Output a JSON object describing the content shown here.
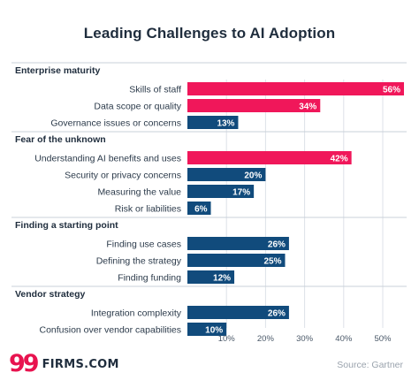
{
  "chart_data": {
    "type": "bar",
    "orientation": "horizontal",
    "title": "Leading Challenges to AI Adoption",
    "xlim": [
      0,
      50
    ],
    "x_ticks": [
      "10%",
      "20%",
      "30%",
      "40%",
      "50%"
    ],
    "grid": "vertical",
    "groups": [
      {
        "label": "Enterprise maturity",
        "items": [
          {
            "label": "Skills of staff",
            "value": 56,
            "value_label": "56%",
            "highlight": true
          },
          {
            "label": "Data scope or quality",
            "value": 34,
            "value_label": "34%",
            "highlight": true
          },
          {
            "label": "Governance issues or concerns",
            "value": 13,
            "value_label": "13%",
            "highlight": false
          }
        ]
      },
      {
        "label": "Fear of the unknown",
        "items": [
          {
            "label": "Understanding AI benefits and uses",
            "value": 42,
            "value_label": "42%",
            "highlight": true
          },
          {
            "label": "Security or privacy concerns",
            "value": 20,
            "value_label": "20%",
            "highlight": false
          },
          {
            "label": "Measuring the value",
            "value": 17,
            "value_label": "17%",
            "highlight": false
          },
          {
            "label": "Risk or liabilities",
            "value": 6,
            "value_label": "6%",
            "highlight": false
          }
        ]
      },
      {
        "label": "Finding a starting point",
        "items": [
          {
            "label": "Finding use cases",
            "value": 26,
            "value_label": "26%",
            "highlight": false
          },
          {
            "label": "Defining the strategy",
            "value": 25,
            "value_label": "25%",
            "highlight": false
          },
          {
            "label": "Finding funding",
            "value": 12,
            "value_label": "12%",
            "highlight": false
          }
        ]
      },
      {
        "label": "Vendor strategy",
        "items": [
          {
            "label": "Integration complexity",
            "value": 26,
            "value_label": "26%",
            "highlight": false
          },
          {
            "label": "Confusion over vendor capabilities",
            "value": 10,
            "value_label": "10%",
            "highlight": false
          }
        ]
      }
    ],
    "colors": {
      "highlight": "#f0175a",
      "normal": "#114b7c",
      "grid": "#dde2e8",
      "divider": "#c9d0d8"
    }
  },
  "footer": {
    "logo_mark": "99",
    "logo_text": "FIRMS.COM",
    "source": "Source: Gartner"
  }
}
